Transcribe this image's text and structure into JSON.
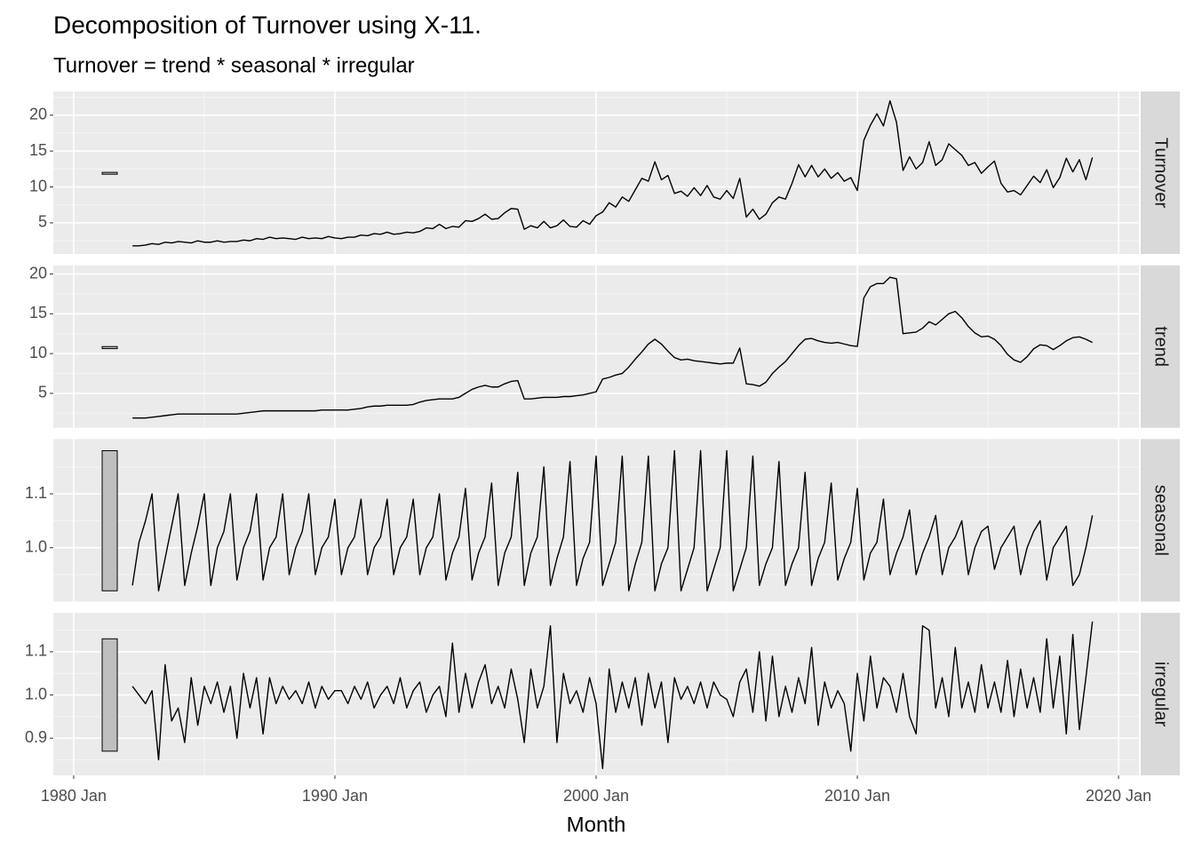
{
  "chart_data": {
    "type": "line",
    "title": "Decomposition of Turnover using X-11.",
    "subtitle": "Turnover = trend * seasonal * irregular",
    "xlabel": "Month",
    "grid": true,
    "xlim": [
      1979.22,
      2020.78
    ],
    "xticks": [
      {
        "value": 1980,
        "label": "1980 Jan"
      },
      {
        "value": 1990,
        "label": "1990 Jan"
      },
      {
        "value": 2000,
        "label": "2000 Jan"
      },
      {
        "value": 2010,
        "label": "2010 Jan"
      },
      {
        "value": 2020,
        "label": "2020 Jan"
      }
    ],
    "x": [
      1982.25,
      1982.5,
      1982.75,
      1983,
      1983.25,
      1983.5,
      1983.75,
      1984,
      1984.25,
      1984.5,
      1984.75,
      1985,
      1985.25,
      1985.5,
      1985.75,
      1986,
      1986.25,
      1986.5,
      1986.75,
      1987,
      1987.25,
      1987.5,
      1987.75,
      1988,
      1988.25,
      1988.5,
      1988.75,
      1989,
      1989.25,
      1989.5,
      1989.75,
      1990,
      1990.25,
      1990.5,
      1990.75,
      1991,
      1991.25,
      1991.5,
      1991.75,
      1992,
      1992.25,
      1992.5,
      1992.75,
      1993,
      1993.25,
      1993.5,
      1993.75,
      1994,
      1994.25,
      1994.5,
      1994.75,
      1995,
      1995.25,
      1995.5,
      1995.75,
      1996,
      1996.25,
      1996.5,
      1996.75,
      1997,
      1997.25,
      1997.5,
      1997.75,
      1998,
      1998.25,
      1998.5,
      1998.75,
      1999,
      1999.25,
      1999.5,
      1999.75,
      2000,
      2000.25,
      2000.5,
      2000.75,
      2001,
      2001.25,
      2001.5,
      2001.75,
      2002,
      2002.25,
      2002.5,
      2002.75,
      2003,
      2003.25,
      2003.5,
      2003.75,
      2004,
      2004.25,
      2004.5,
      2004.75,
      2005,
      2005.25,
      2005.5,
      2005.75,
      2006,
      2006.25,
      2006.5,
      2006.75,
      2007,
      2007.25,
      2007.5,
      2007.75,
      2008,
      2008.25,
      2008.5,
      2008.75,
      2009,
      2009.25,
      2009.5,
      2009.75,
      2010,
      2010.25,
      2010.5,
      2010.75,
      2011,
      2011.25,
      2011.5,
      2011.75,
      2012,
      2012.25,
      2012.5,
      2012.75,
      2013,
      2013.25,
      2013.5,
      2013.75,
      2014,
      2014.25,
      2014.5,
      2014.75,
      2015,
      2015.25,
      2015.5,
      2015.75,
      2016,
      2016.25,
      2016.5,
      2016.75,
      2017,
      2017.25,
      2017.5,
      2017.75,
      2018,
      2018.25,
      2018.5,
      2018.75,
      2019
    ],
    "series": [
      {
        "name": "Turnover",
        "color": "#000000",
        "ylim": [
          0.66,
          23.3
        ],
        "yticks": [
          5,
          10,
          15,
          20
        ],
        "values": [
          1.8,
          1.8,
          1.9,
          2.1,
          2.0,
          2.3,
          2.2,
          2.4,
          2.3,
          2.2,
          2.5,
          2.3,
          2.3,
          2.5,
          2.3,
          2.4,
          2.4,
          2.6,
          2.5,
          2.8,
          2.7,
          3.0,
          2.8,
          2.9,
          2.8,
          2.7,
          3.0,
          2.8,
          2.9,
          2.8,
          3.1,
          2.9,
          2.8,
          3.0,
          3.0,
          3.3,
          3.2,
          3.5,
          3.4,
          3.7,
          3.4,
          3.5,
          3.7,
          3.6,
          3.8,
          4.3,
          4.2,
          4.8,
          4.2,
          4.5,
          4.4,
          5.3,
          5.2,
          5.6,
          6.2,
          5.5,
          5.6,
          6.4,
          7.0,
          6.9,
          4.1,
          4.6,
          4.3,
          5.2,
          4.3,
          4.6,
          5.4,
          4.5,
          4.4,
          5.3,
          4.8,
          6.0,
          6.5,
          7.8,
          7.2,
          8.6,
          8.0,
          9.6,
          11.2,
          10.8,
          13.5,
          11.0,
          11.6,
          9.1,
          9.4,
          8.7,
          9.9,
          8.8,
          10.2,
          8.6,
          8.3,
          9.5,
          8.4,
          11.2,
          5.8,
          6.9,
          5.5,
          6.2,
          7.8,
          8.6,
          8.3,
          10.5,
          13.1,
          11.4,
          13.0,
          11.4,
          12.5,
          11.2,
          12.0,
          10.8,
          11.3,
          9.5,
          16.5,
          18.6,
          20.2,
          18.5,
          22.0,
          19.0,
          12.3,
          14.2,
          12.5,
          13.4,
          16.3,
          13.0,
          13.8,
          16.0,
          15.2,
          14.4,
          13.0,
          13.4,
          11.9,
          12.8,
          13.6,
          10.5,
          9.3,
          9.5,
          8.9,
          10.2,
          11.5,
          10.6,
          12.4,
          9.9,
          11.3,
          14.0,
          12.1,
          13.8,
          11.0,
          14.1
        ]
      },
      {
        "name": "trend",
        "color": "#000000",
        "ylim": [
          0.67,
          21.1
        ],
        "yticks": [
          5,
          10,
          15,
          20
        ],
        "values": [
          1.9,
          1.9,
          1.9,
          2.0,
          2.1,
          2.2,
          2.3,
          2.4,
          2.4,
          2.4,
          2.4,
          2.4,
          2.4,
          2.4,
          2.4,
          2.4,
          2.4,
          2.5,
          2.6,
          2.7,
          2.8,
          2.8,
          2.8,
          2.8,
          2.8,
          2.8,
          2.8,
          2.8,
          2.8,
          2.9,
          2.9,
          2.9,
          2.9,
          2.9,
          3.0,
          3.1,
          3.3,
          3.4,
          3.4,
          3.5,
          3.5,
          3.5,
          3.5,
          3.6,
          3.9,
          4.1,
          4.2,
          4.3,
          4.3,
          4.3,
          4.5,
          5.0,
          5.5,
          5.8,
          6.0,
          5.8,
          5.8,
          6.2,
          6.5,
          6.6,
          4.3,
          4.3,
          4.4,
          4.5,
          4.5,
          4.5,
          4.6,
          4.6,
          4.7,
          4.8,
          5.0,
          5.2,
          6.8,
          7.0,
          7.3,
          7.5,
          8.3,
          9.3,
          10.2,
          11.2,
          11.8,
          11.2,
          10.3,
          9.5,
          9.2,
          9.3,
          9.1,
          9.0,
          8.9,
          8.8,
          8.7,
          8.8,
          8.8,
          10.7,
          6.2,
          6.1,
          5.9,
          6.4,
          7.5,
          8.3,
          9.0,
          10.0,
          11.0,
          11.8,
          11.9,
          11.6,
          11.4,
          11.3,
          11.4,
          11.2,
          11.0,
          10.9,
          17.0,
          18.4,
          18.8,
          18.8,
          19.6,
          19.4,
          12.5,
          12.6,
          12.7,
          13.2,
          14.0,
          13.6,
          14.3,
          15.0,
          15.3,
          14.5,
          13.4,
          12.6,
          12.1,
          12.2,
          11.8,
          11.0,
          9.9,
          9.2,
          8.9,
          9.6,
          10.6,
          11.1,
          11.0,
          10.5,
          11.0,
          11.6,
          12.0,
          12.1,
          11.8,
          11.4
        ]
      },
      {
        "name": "seasonal",
        "color": "#000000",
        "ylim": [
          0.9,
          1.2016
        ],
        "yticks": [
          {
            "value": 1,
            "label": "1.0"
          },
          1.1
        ],
        "values": [
          0.93,
          1.01,
          1.05,
          1.1,
          0.92,
          0.98,
          1.04,
          1.1,
          0.93,
          0.99,
          1.04,
          1.1,
          0.93,
          1.0,
          1.03,
          1.1,
          0.94,
          1.0,
          1.03,
          1.1,
          0.94,
          1.0,
          1.02,
          1.1,
          0.95,
          1.0,
          1.03,
          1.1,
          0.95,
          1.0,
          1.02,
          1.09,
          0.95,
          1.0,
          1.02,
          1.09,
          0.95,
          1.0,
          1.02,
          1.09,
          0.95,
          1.0,
          1.02,
          1.09,
          0.95,
          1.0,
          1.02,
          1.1,
          0.94,
          0.99,
          1.02,
          1.11,
          0.94,
          0.99,
          1.02,
          1.12,
          0.93,
          0.99,
          1.02,
          1.14,
          0.93,
          0.99,
          1.02,
          1.15,
          0.93,
          0.98,
          1.02,
          1.16,
          0.93,
          0.98,
          1.01,
          1.17,
          0.93,
          0.97,
          1.01,
          1.17,
          0.92,
          0.97,
          1.01,
          1.17,
          0.92,
          0.97,
          1.0,
          1.18,
          0.92,
          0.96,
          1.0,
          1.18,
          0.92,
          0.96,
          1.0,
          1.18,
          0.92,
          0.96,
          1.0,
          1.17,
          0.93,
          0.97,
          1.0,
          1.16,
          0.93,
          0.97,
          1.0,
          1.14,
          0.93,
          0.98,
          1.01,
          1.12,
          0.94,
          0.98,
          1.01,
          1.11,
          0.94,
          0.99,
          1.01,
          1.09,
          0.95,
          0.99,
          1.02,
          1.07,
          0.95,
          0.99,
          1.02,
          1.06,
          0.95,
          1.0,
          1.02,
          1.05,
          0.95,
          1.0,
          1.03,
          1.04,
          0.96,
          1.0,
          1.02,
          1.04,
          0.95,
          1.0,
          1.03,
          1.05,
          0.94,
          1.0,
          1.02,
          1.04,
          0.93,
          0.95,
          1.0,
          1.06
        ]
      },
      {
        "name": "irregular",
        "color": "#000000",
        "ylim": [
          0.814,
          1.19
        ],
        "yticks": [
          0.9,
          {
            "value": 1,
            "label": "1.0"
          },
          1.1
        ],
        "values": [
          1.02,
          1.0,
          0.98,
          1.01,
          0.85,
          1.07,
          0.94,
          0.97,
          0.89,
          1.04,
          0.93,
          1.02,
          0.98,
          1.03,
          0.96,
          1.02,
          0.9,
          1.05,
          0.97,
          1.04,
          0.91,
          1.04,
          0.98,
          1.02,
          0.99,
          1.01,
          0.98,
          1.03,
          0.97,
          1.02,
          0.99,
          1.01,
          1.01,
          0.98,
          1.02,
          0.99,
          1.03,
          0.97,
          1.0,
          1.02,
          0.98,
          1.04,
          0.97,
          1.01,
          1.03,
          0.96,
          1.0,
          1.02,
          0.95,
          1.12,
          0.96,
          1.05,
          0.97,
          1.03,
          1.07,
          0.98,
          1.02,
          0.97,
          1.06,
          0.99,
          0.89,
          1.06,
          0.97,
          1.02,
          1.16,
          0.89,
          1.05,
          0.98,
          1.01,
          0.96,
          1.04,
          0.98,
          0.83,
          1.06,
          0.96,
          1.03,
          0.97,
          1.04,
          0.93,
          1.05,
          0.97,
          1.03,
          0.89,
          1.04,
          0.99,
          1.02,
          0.98,
          1.03,
          0.97,
          1.03,
          1.0,
          0.99,
          0.95,
          1.03,
          1.06,
          0.96,
          1.1,
          0.94,
          1.09,
          0.95,
          1.02,
          0.96,
          1.04,
          0.98,
          1.11,
          0.93,
          1.03,
          0.97,
          1.01,
          0.98,
          0.87,
          1.05,
          0.94,
          1.09,
          0.97,
          1.04,
          1.02,
          0.96,
          1.05,
          0.95,
          0.91,
          1.16,
          1.15,
          0.97,
          1.04,
          0.95,
          1.11,
          0.97,
          1.03,
          0.96,
          1.07,
          0.97,
          1.03,
          0.96,
          1.08,
          0.95,
          1.06,
          0.97,
          1.04,
          0.96,
          1.13,
          0.97,
          1.09,
          0.91,
          1.14,
          0.92,
          1.04,
          1.17
        ]
      }
    ]
  }
}
